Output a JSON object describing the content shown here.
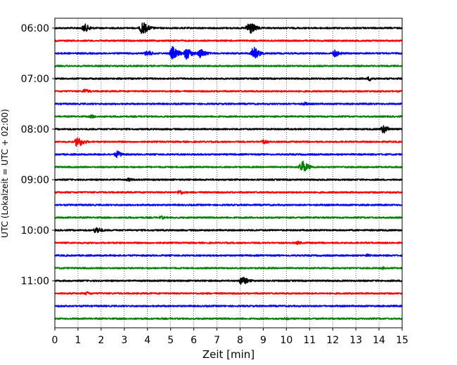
{
  "chart_data": {
    "type": "line",
    "title": "",
    "xlabel": "Zeit  [min]",
    "ylabel": "UTC (Lokalzeit = UTC + 02:00)",
    "xlim": [
      0,
      15
    ],
    "x_ticks": [
      "0",
      "1",
      "2",
      "3",
      "4",
      "5",
      "6",
      "7",
      "8",
      "9",
      "10",
      "11",
      "12",
      "13",
      "14",
      "15"
    ],
    "y_tick_labels": [
      "06:00",
      "07:00",
      "08:00",
      "09:00",
      "10:00",
      "11:00"
    ],
    "grid": "vertical dotted",
    "trace_interval_minutes": 15,
    "trace_colors": [
      "#000000",
      "#ff0000",
      "#0000ff",
      "#008000"
    ],
    "traces": [
      {
        "start": "06:00",
        "color": "#000000",
        "events": [
          {
            "t": 1.3,
            "amp": 0.35
          },
          {
            "t": 3.8,
            "amp": 0.55
          },
          {
            "t": 8.4,
            "amp": 0.6
          }
        ]
      },
      {
        "start": "06:15",
        "color": "#ff0000",
        "events": []
      },
      {
        "start": "06:30",
        "color": "#0000ff",
        "events": [
          {
            "t": 4.0,
            "amp": 0.25
          },
          {
            "t": 5.1,
            "amp": 0.55
          },
          {
            "t": 5.7,
            "amp": 0.5
          },
          {
            "t": 6.3,
            "amp": 0.4
          },
          {
            "t": 8.6,
            "amp": 0.55
          },
          {
            "t": 12.1,
            "amp": 0.3
          }
        ]
      },
      {
        "start": "06:45",
        "color": "#008000",
        "events": []
      },
      {
        "start": "07:00",
        "color": "#000000",
        "events": [
          {
            "t": 13.6,
            "amp": 0.2
          }
        ]
      },
      {
        "start": "07:15",
        "color": "#ff0000",
        "events": [
          {
            "t": 1.3,
            "amp": 0.2
          }
        ]
      },
      {
        "start": "07:30",
        "color": "#0000ff",
        "events": [
          {
            "t": 10.8,
            "amp": 0.15
          }
        ]
      },
      {
        "start": "07:45",
        "color": "#008000",
        "events": [
          {
            "t": 1.6,
            "amp": 0.15
          }
        ]
      },
      {
        "start": "08:00",
        "color": "#000000",
        "events": [
          {
            "t": 14.2,
            "amp": 0.35
          }
        ]
      },
      {
        "start": "08:15",
        "color": "#ff0000",
        "events": [
          {
            "t": 1.0,
            "amp": 0.5
          },
          {
            "t": 9.0,
            "amp": 0.2
          }
        ]
      },
      {
        "start": "08:30",
        "color": "#0000ff",
        "events": [
          {
            "t": 2.7,
            "amp": 0.3
          }
        ]
      },
      {
        "start": "08:45",
        "color": "#008000",
        "events": [
          {
            "t": 10.7,
            "amp": 0.55
          }
        ]
      },
      {
        "start": "09:00",
        "color": "#000000",
        "events": [
          {
            "t": 3.2,
            "amp": 0.15
          }
        ]
      },
      {
        "start": "09:15",
        "color": "#ff0000",
        "events": [
          {
            "t": 5.4,
            "amp": 0.2
          }
        ]
      },
      {
        "start": "09:30",
        "color": "#0000ff",
        "events": []
      },
      {
        "start": "09:45",
        "color": "#008000",
        "events": [
          {
            "t": 4.6,
            "amp": 0.15
          }
        ]
      },
      {
        "start": "10:00",
        "color": "#000000",
        "events": [
          {
            "t": 1.8,
            "amp": 0.3
          }
        ]
      },
      {
        "start": "10:15",
        "color": "#ff0000",
        "events": [
          {
            "t": 10.5,
            "amp": 0.15
          }
        ]
      },
      {
        "start": "10:30",
        "color": "#0000ff",
        "events": [
          {
            "t": 13.5,
            "amp": 0.12
          }
        ]
      },
      {
        "start": "10:45",
        "color": "#008000",
        "events": [
          {
            "t": 14.2,
            "amp": 0.12
          }
        ]
      },
      {
        "start": "11:00",
        "color": "#000000",
        "events": [
          {
            "t": 8.1,
            "amp": 0.4
          }
        ]
      },
      {
        "start": "11:15",
        "color": "#ff0000",
        "events": [
          {
            "t": 1.4,
            "amp": 0.15
          }
        ]
      },
      {
        "start": "11:30",
        "color": "#0000ff",
        "events": []
      },
      {
        "start": "11:45",
        "color": "#008000",
        "events": [
          {
            "t": 10.0,
            "amp": 0.12
          }
        ]
      }
    ]
  }
}
